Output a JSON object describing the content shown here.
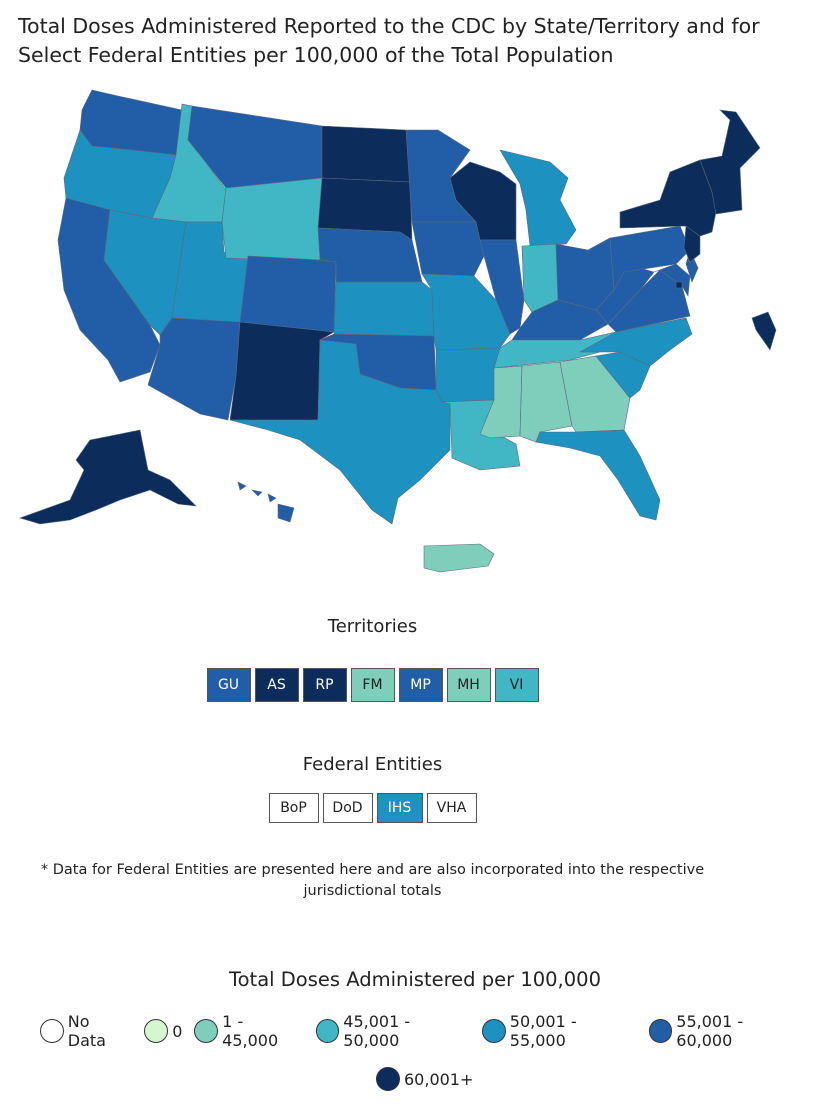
{
  "title": "Total Doses Administered Reported to the CDC by State/Territory and for Select Federal Entities per 100,000 of the Total Population",
  "colors": {
    "no_data": "#ffffff",
    "zero": "#d4f7d0",
    "c1": "#7fcdbb",
    "c2": "#41b6c4",
    "c3": "#1d91c0",
    "c4": "#225ea8",
    "c5": "#0c2c5c"
  },
  "territories": {
    "title": "Territories",
    "items": [
      {
        "label": "GU",
        "color": "#225ea8",
        "text_color": "#ffffff"
      },
      {
        "label": "AS",
        "color": "#0c2c5c",
        "text_color": "#ffffff"
      },
      {
        "label": "RP",
        "color": "#0c2c5c",
        "text_color": "#ffffff"
      },
      {
        "label": "FM",
        "color": "#7fcdbb",
        "text_color": "#222222"
      },
      {
        "label": "MP",
        "color": "#225ea8",
        "text_color": "#ffffff"
      },
      {
        "label": "MH",
        "color": "#7fcdbb",
        "text_color": "#222222"
      },
      {
        "label": "VI",
        "color": "#41b6c4",
        "text_color": "#222222"
      }
    ]
  },
  "federal": {
    "title": "Federal Entities",
    "items": [
      {
        "label": "BoP",
        "color": "#ffffff",
        "text_color": "#222222"
      },
      {
        "label": "DoD",
        "color": "#ffffff",
        "text_color": "#222222"
      },
      {
        "label": "IHS",
        "color": "#1d91c0",
        "text_color": "#ffffff"
      },
      {
        "label": "VHA",
        "color": "#ffffff",
        "text_color": "#222222"
      }
    ]
  },
  "note": "* Data for Federal Entities are presented here and are also incorporated into the respective jurisdictional totals",
  "legend": {
    "title": "Total Doses Administered per 100,000",
    "items": [
      {
        "label": "No Data",
        "color": "#ffffff"
      },
      {
        "label": "0",
        "color": "#d4f7d0"
      },
      {
        "label": "1 - 45,000",
        "color": "#7fcdbb"
      },
      {
        "label": "45,001 - 50,000",
        "color": "#41b6c4"
      },
      {
        "label": "50,001 - 55,000",
        "color": "#1d91c0"
      },
      {
        "label": "55,001 - 60,000",
        "color": "#225ea8"
      },
      {
        "label": "60,001+",
        "color": "#0c2c5c"
      }
    ]
  },
  "states": {
    "WA": "c4",
    "OR": "c3",
    "CA": "c4",
    "ID": "c2",
    "NV": "c3",
    "UT": "c3",
    "AZ": "c4",
    "MT": "c4",
    "WY": "c2",
    "CO": "c4",
    "NM": "c5",
    "ND": "c5",
    "SD": "c5",
    "NE": "c4",
    "KS": "c3",
    "OK": "c4",
    "TX": "c3",
    "MN": "c4",
    "IA": "c4",
    "MO": "c3",
    "AR": "c3",
    "LA": "c2",
    "WI": "c5",
    "IL": "c4",
    "MI": "c3",
    "IN": "c2",
    "OH": "c4",
    "KY": "c4",
    "TN": "c2",
    "MS": "c1",
    "AL": "c1",
    "GA": "c1",
    "FL": "c3",
    "SC": "c3",
    "NC": "c3",
    "VA": "c4",
    "WV": "c4",
    "PA": "c4",
    "NY": "c5",
    "NJ": "c5",
    "MD": "c4",
    "DE": "c4",
    "NE6": "c5",
    "ME": "c5",
    "AK": "c5",
    "HI": "c4",
    "PR": "c1",
    "DC": "c5"
  }
}
